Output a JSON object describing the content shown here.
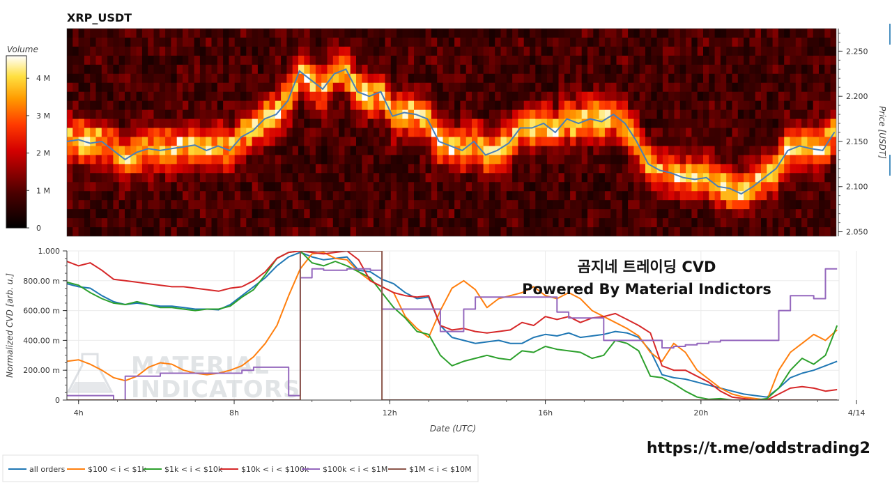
{
  "title": "XRP_USDT",
  "colorbar": {
    "label": "Volume",
    "ticks": [
      "0",
      "1 M",
      "2 M",
      "3 M",
      "4 M"
    ],
    "tick_values": [
      0,
      1,
      2,
      3,
      4
    ],
    "max": 4.6
  },
  "annotation": {
    "line1": "곰지네 트레이딩 CVD",
    "line2": "Powered By Material Indictors"
  },
  "watermark": {
    "line1": "MATERIAL",
    "line2": "INDICATORS"
  },
  "url": "https://t.me/oddstrading2",
  "colors": {
    "heat_low": "#000000",
    "heat_mid": "#ff0000",
    "heat_high": "#ffffff",
    "price_line": "#4a7fb8"
  },
  "chart_data": [
    {
      "type": "heatmap",
      "title": "XRP_USDT",
      "ylabel": "Price [USDT]",
      "ylim": [
        2.045,
        2.275
      ],
      "y_ticks": [
        2.05,
        2.1,
        2.15,
        2.2,
        2.25
      ],
      "y_tick_labels": [
        "2.050",
        "2.100",
        "2.150",
        "2.200",
        "2.250"
      ],
      "xlim": [
        3.7,
        23.55
      ],
      "value_label": "Volume",
      "price_series": {
        "x": [
          3.7,
          4.0,
          4.3,
          4.6,
          4.9,
          5.2,
          5.5,
          5.8,
          6.1,
          6.4,
          6.7,
          7.0,
          7.3,
          7.6,
          7.9,
          8.2,
          8.5,
          8.8,
          9.1,
          9.4,
          9.7,
          10.0,
          10.3,
          10.6,
          10.9,
          11.2,
          11.5,
          11.8,
          12.1,
          12.4,
          12.7,
          13.0,
          13.3,
          13.6,
          13.9,
          14.2,
          14.5,
          14.8,
          15.1,
          15.4,
          15.7,
          16.0,
          16.3,
          16.6,
          16.9,
          17.2,
          17.5,
          17.8,
          18.1,
          18.4,
          18.7,
          19.0,
          19.3,
          19.6,
          19.9,
          20.2,
          20.5,
          20.8,
          21.1,
          21.4,
          21.7,
          22.0,
          22.3,
          22.6,
          22.9,
          23.2,
          23.5
        ],
        "y": [
          2.15,
          2.152,
          2.148,
          2.15,
          2.14,
          2.13,
          2.138,
          2.142,
          2.14,
          2.142,
          2.144,
          2.146,
          2.14,
          2.145,
          2.14,
          2.155,
          2.162,
          2.175,
          2.18,
          2.195,
          2.228,
          2.218,
          2.208,
          2.225,
          2.23,
          2.205,
          2.2,
          2.205,
          2.178,
          2.182,
          2.18,
          2.175,
          2.15,
          2.145,
          2.14,
          2.15,
          2.135,
          2.14,
          2.148,
          2.165,
          2.165,
          2.17,
          2.16,
          2.175,
          2.17,
          2.175,
          2.172,
          2.18,
          2.17,
          2.15,
          2.125,
          2.118,
          2.115,
          2.11,
          2.108,
          2.11,
          2.1,
          2.098,
          2.092,
          2.1,
          2.11,
          2.12,
          2.14,
          2.145,
          2.142,
          2.14,
          2.16
        ]
      }
    },
    {
      "type": "line",
      "xlabel": "Date (UTC)",
      "ylabel": "Normalized CVD [arb. u.]",
      "xlim": [
        3.7,
        23.55
      ],
      "ylim": [
        0,
        1000
      ],
      "x_ticks": [
        4,
        8,
        12,
        16,
        20,
        24
      ],
      "x_tick_labels": [
        "4h",
        "8h",
        "12h",
        "16h",
        "20h",
        "4/14"
      ],
      "y_ticks": [
        0,
        200,
        400,
        600,
        800,
        1000
      ],
      "y_tick_labels": [
        "0",
        "200.00 m",
        "400.00 m",
        "600.00 m",
        "800.00 m",
        "1.000"
      ],
      "legend_position": "bottom",
      "x": [
        3.7,
        4.0,
        4.3,
        4.6,
        4.9,
        5.2,
        5.5,
        5.8,
        6.1,
        6.4,
        6.7,
        7.0,
        7.3,
        7.6,
        7.9,
        8.2,
        8.5,
        8.8,
        9.1,
        9.4,
        9.7,
        10.0,
        10.3,
        10.6,
        10.9,
        11.2,
        11.5,
        11.8,
        12.1,
        12.4,
        12.7,
        13.0,
        13.3,
        13.6,
        13.9,
        14.2,
        14.5,
        14.8,
        15.1,
        15.4,
        15.7,
        16.0,
        16.3,
        16.6,
        16.9,
        17.2,
        17.5,
        17.8,
        18.1,
        18.4,
        18.7,
        19.0,
        19.3,
        19.6,
        19.9,
        20.2,
        20.5,
        20.8,
        21.1,
        21.4,
        21.7,
        22.0,
        22.3,
        22.6,
        22.9,
        23.2,
        23.5
      ],
      "series": [
        {
          "name": "all orders",
          "color": "#1f77b4",
          "values": [
            780,
            760,
            750,
            700,
            660,
            640,
            650,
            640,
            630,
            630,
            620,
            610,
            610,
            605,
            640,
            700,
            760,
            820,
            900,
            960,
            990,
            960,
            940,
            950,
            960,
            870,
            860,
            810,
            780,
            720,
            680,
            690,
            500,
            420,
            400,
            380,
            390,
            400,
            380,
            380,
            420,
            440,
            430,
            450,
            420,
            430,
            440,
            460,
            450,
            420,
            330,
            170,
            150,
            140,
            120,
            100,
            80,
            60,
            40,
            30,
            20,
            80,
            150,
            180,
            200,
            230,
            260
          ]
        },
        {
          "name": "$100 < i < $1k",
          "color": "#ff7f0e",
          "values": [
            260,
            270,
            240,
            200,
            150,
            130,
            160,
            220,
            250,
            240,
            200,
            180,
            170,
            180,
            200,
            230,
            290,
            380,
            500,
            700,
            880,
            980,
            990,
            950,
            940,
            860,
            800,
            760,
            720,
            560,
            480,
            420,
            600,
            750,
            800,
            740,
            620,
            680,
            700,
            720,
            760,
            700,
            680,
            720,
            680,
            600,
            560,
            520,
            480,
            430,
            320,
            260,
            380,
            320,
            200,
            140,
            80,
            40,
            20,
            10,
            0,
            200,
            320,
            380,
            440,
            400,
            470
          ]
        },
        {
          "name": "$1k < i < $10k",
          "color": "#2ca02c",
          "values": [
            790,
            770,
            720,
            680,
            650,
            640,
            660,
            640,
            620,
            620,
            610,
            600,
            610,
            610,
            630,
            690,
            740,
            840,
            950,
            990,
            1000,
            920,
            900,
            930,
            900,
            860,
            820,
            720,
            620,
            550,
            460,
            440,
            300,
            230,
            260,
            280,
            300,
            280,
            270,
            330,
            320,
            360,
            340,
            330,
            320,
            280,
            300,
            400,
            380,
            330,
            160,
            150,
            110,
            60,
            20,
            5,
            10,
            0,
            0,
            0,
            10,
            80,
            200,
            280,
            240,
            300,
            500
          ]
        },
        {
          "name": "$10k < i < $100k",
          "color": "#d62728",
          "values": [
            930,
            900,
            920,
            870,
            810,
            800,
            790,
            780,
            770,
            760,
            760,
            750,
            740,
            730,
            750,
            760,
            800,
            860,
            950,
            990,
            1000,
            990,
            980,
            990,
            1000,
            940,
            800,
            760,
            720,
            700,
            690,
            700,
            500,
            470,
            480,
            460,
            450,
            460,
            470,
            520,
            500,
            560,
            540,
            560,
            520,
            550,
            560,
            580,
            540,
            500,
            450,
            230,
            200,
            200,
            160,
            120,
            60,
            20,
            10,
            0,
            0,
            40,
            80,
            90,
            80,
            60,
            70
          ]
        },
        {
          "name": "$100k < i < $1M",
          "color": "#9467bd",
          "values": [
            30,
            30,
            30,
            30,
            0,
            160,
            160,
            160,
            180,
            180,
            180,
            180,
            180,
            180,
            180,
            200,
            220,
            220,
            220,
            30,
            820,
            880,
            870,
            870,
            880,
            880,
            870,
            610,
            610,
            610,
            610,
            610,
            460,
            460,
            610,
            690,
            690,
            690,
            690,
            690,
            690,
            690,
            590,
            550,
            550,
            550,
            400,
            400,
            400,
            400,
            400,
            350,
            360,
            370,
            380,
            390,
            400,
            400,
            400,
            400,
            400,
            600,
            700,
            700,
            680,
            880,
            880
          ]
        },
        {
          "name": "$1M < i < $10M",
          "color": "#8c564b",
          "values": [
            0,
            0,
            0,
            0,
            0,
            0,
            0,
            0,
            0,
            0,
            0,
            0,
            0,
            0,
            0,
            0,
            0,
            0,
            0,
            0,
            1000,
            1000,
            1000,
            1000,
            1000,
            1000,
            1000,
            0,
            0,
            0,
            0,
            0,
            0,
            0,
            0,
            0,
            0,
            0,
            0,
            0,
            0,
            0,
            0,
            0,
            0,
            0,
            0,
            0,
            0,
            0,
            0,
            0,
            0,
            0,
            0,
            0,
            0,
            0,
            0,
            0,
            0,
            0,
            0,
            0,
            0,
            0,
            0
          ]
        }
      ]
    }
  ]
}
